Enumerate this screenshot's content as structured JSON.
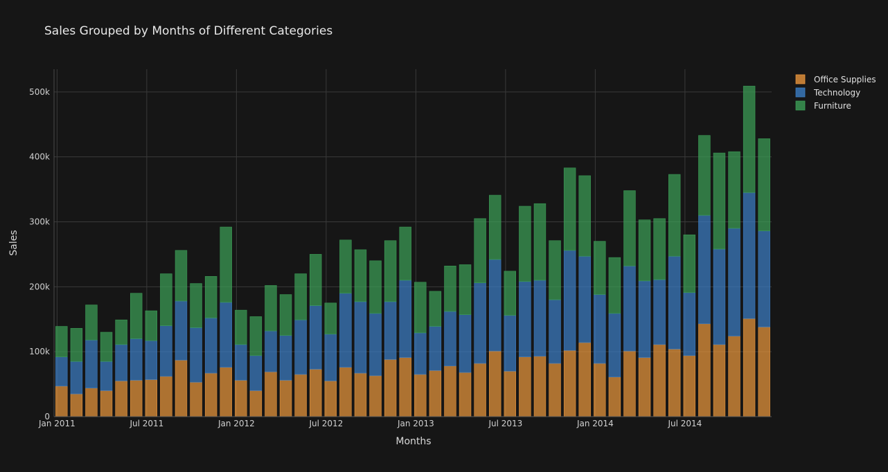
{
  "chart_data": {
    "type": "bar",
    "barmode": "stack",
    "title": "Sales Grouped by Months of Different Categories",
    "xlabel": "Months",
    "ylabel": "Sales",
    "ylim": [
      0,
      535000
    ],
    "grid": true,
    "legend_position": "top-right",
    "x": [
      "2011-01",
      "2011-02",
      "2011-03",
      "2011-04",
      "2011-05",
      "2011-06",
      "2011-07",
      "2011-08",
      "2011-09",
      "2011-10",
      "2011-11",
      "2011-12",
      "2012-01",
      "2012-02",
      "2012-03",
      "2012-04",
      "2012-05",
      "2012-06",
      "2012-07",
      "2012-08",
      "2012-09",
      "2012-10",
      "2012-11",
      "2012-12",
      "2013-01",
      "2013-02",
      "2013-03",
      "2013-04",
      "2013-05",
      "2013-06",
      "2013-07",
      "2013-08",
      "2013-09",
      "2013-10",
      "2013-11",
      "2013-12",
      "2014-01",
      "2014-02",
      "2014-03",
      "2014-04",
      "2014-05",
      "2014-06",
      "2014-07",
      "2014-08",
      "2014-09",
      "2014-10",
      "2014-11",
      "2014-12"
    ],
    "x_tick_labels": [
      "Jan 2011",
      "Jul 2011",
      "Jan 2012",
      "Jul 2012",
      "Jan 2013",
      "Jul 2013",
      "Jan 2014",
      "Jul 2014"
    ],
    "x_tick_dates": [
      "2011-01-01",
      "2011-07-01",
      "2012-01-01",
      "2012-07-01",
      "2013-01-01",
      "2013-07-01",
      "2014-01-01",
      "2014-07-01"
    ],
    "y_ticks": [
      0,
      100000,
      200000,
      300000,
      400000,
      500000
    ],
    "y_tick_labels": [
      "0",
      "100k",
      "200k",
      "300k",
      "400k",
      "500k"
    ],
    "series": [
      {
        "name": "Office Supplies",
        "color": "#e8953c",
        "values": [
          47000,
          35000,
          44000,
          40000,
          55000,
          56000,
          57000,
          62000,
          87000,
          53000,
          67000,
          76000,
          56000,
          40000,
          69000,
          56000,
          65000,
          73000,
          55000,
          76000,
          67000,
          63000,
          88000,
          91000,
          65000,
          71000,
          78000,
          68000,
          82000,
          101000,
          70000,
          92000,
          93000,
          82000,
          102000,
          114000,
          82000,
          61000,
          101000,
          91000,
          111000,
          104000,
          94000,
          143000,
          111000,
          124000,
          151000,
          138000
        ]
      },
      {
        "name": "Technology",
        "color": "#3b7dc4",
        "values": [
          45000,
          50000,
          74000,
          45000,
          56000,
          64000,
          60000,
          78000,
          91000,
          84000,
          85000,
          100000,
          55000,
          54000,
          63000,
          69000,
          84000,
          98000,
          72000,
          114000,
          110000,
          96000,
          89000,
          119000,
          64000,
          68000,
          84000,
          89000,
          124000,
          141000,
          86000,
          116000,
          117000,
          98000,
          154000,
          133000,
          106000,
          98000,
          131000,
          118000,
          100000,
          143000,
          97000,
          167000,
          147000,
          166000,
          194000,
          148000
        ]
      },
      {
        "name": "Furniture",
        "color": "#3c9e56",
        "values": [
          47000,
          51000,
          54000,
          45000,
          38000,
          70000,
          46000,
          80000,
          78000,
          68000,
          64000,
          116000,
          53000,
          60000,
          70000,
          63000,
          71000,
          79000,
          48000,
          82000,
          80000,
          81000,
          94000,
          82000,
          78000,
          54000,
          70000,
          77000,
          99000,
          99000,
          68000,
          116000,
          118000,
          91000,
          127000,
          124000,
          82000,
          86000,
          116000,
          94000,
          94000,
          126000,
          89000,
          123000,
          148000,
          118000,
          164000,
          142000
        ]
      }
    ]
  }
}
